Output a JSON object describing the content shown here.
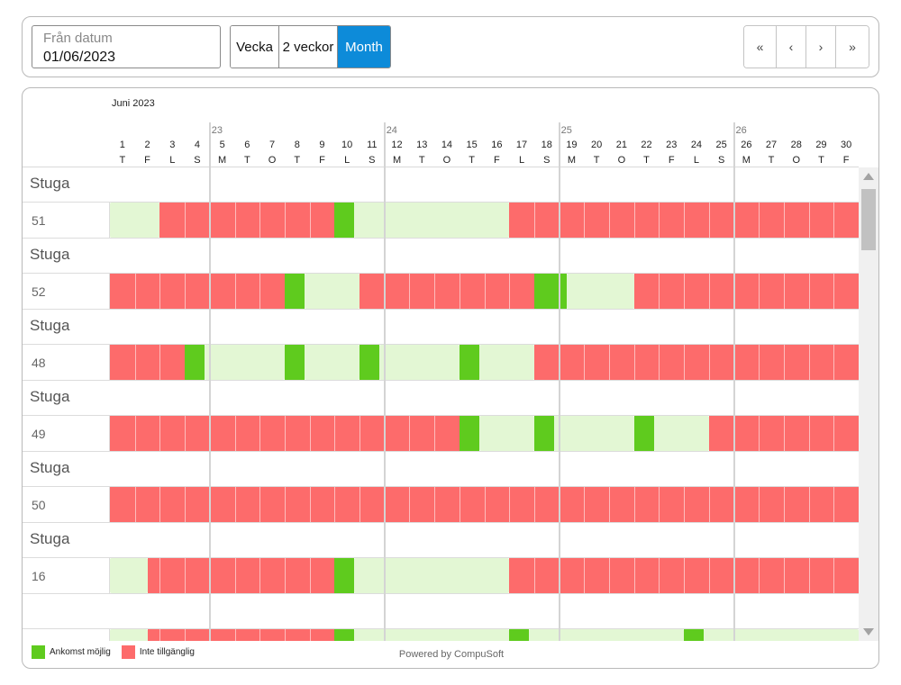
{
  "toolbar": {
    "date_label": "Från datum",
    "date_value": "01/06/2023",
    "views": [
      {
        "label": "Vecka",
        "active": false
      },
      {
        "label": "2 veckor",
        "active": false
      },
      {
        "label": "Month",
        "active": true
      }
    ],
    "nav": {
      "first": "«",
      "prev": "‹",
      "next": "›",
      "last": "»"
    },
    "accent_color": "#0d8bd9"
  },
  "calendar": {
    "month_label": "Juni 2023",
    "weeks": [
      {
        "label": "23",
        "start_day": 5
      },
      {
        "label": "24",
        "start_day": 12
      },
      {
        "label": "25",
        "start_day": 19
      },
      {
        "label": "26",
        "start_day": 26
      }
    ],
    "days": [
      {
        "n": "1",
        "d": "T"
      },
      {
        "n": "2",
        "d": "F"
      },
      {
        "n": "3",
        "d": "L"
      },
      {
        "n": "4",
        "d": "S"
      },
      {
        "n": "5",
        "d": "M"
      },
      {
        "n": "6",
        "d": "T"
      },
      {
        "n": "7",
        "d": "O"
      },
      {
        "n": "8",
        "d": "T"
      },
      {
        "n": "9",
        "d": "F"
      },
      {
        "n": "10",
        "d": "L"
      },
      {
        "n": "11",
        "d": "S"
      },
      {
        "n": "12",
        "d": "M"
      },
      {
        "n": "13",
        "d": "T"
      },
      {
        "n": "14",
        "d": "O"
      },
      {
        "n": "15",
        "d": "T"
      },
      {
        "n": "16",
        "d": "F"
      },
      {
        "n": "17",
        "d": "L"
      },
      {
        "n": "18",
        "d": "S"
      },
      {
        "n": "19",
        "d": "M"
      },
      {
        "n": "20",
        "d": "T"
      },
      {
        "n": "21",
        "d": "O"
      },
      {
        "n": "22",
        "d": "T"
      },
      {
        "n": "23",
        "d": "F"
      },
      {
        "n": "24",
        "d": "L"
      },
      {
        "n": "25",
        "d": "S"
      },
      {
        "n": "26",
        "d": "M"
      },
      {
        "n": "27",
        "d": "T"
      },
      {
        "n": "28",
        "d": "O"
      },
      {
        "n": "29",
        "d": "T"
      },
      {
        "n": "30",
        "d": "F"
      }
    ],
    "units": [
      {
        "group": "Stuga",
        "name": "51",
        "blocks": [
          {
            "type": "light",
            "from": 1,
            "to": 3
          },
          {
            "type": "red",
            "from": 3,
            "to": 10
          },
          {
            "type": "green",
            "from": 10,
            "to": 10.8
          },
          {
            "type": "light",
            "from": 10.8,
            "to": 17
          },
          {
            "type": "red",
            "from": 17,
            "to": 31
          }
        ]
      },
      {
        "group": "Stuga",
        "name": "52",
        "blocks": [
          {
            "type": "red",
            "from": 1,
            "to": 8
          },
          {
            "type": "green",
            "from": 8,
            "to": 8.8
          },
          {
            "type": "light",
            "from": 8.8,
            "to": 11
          },
          {
            "type": "red",
            "from": 11,
            "to": 18
          },
          {
            "type": "green",
            "from": 18,
            "to": 19.3
          },
          {
            "type": "light",
            "from": 19.3,
            "to": 22
          },
          {
            "type": "red",
            "from": 22,
            "to": 31
          }
        ]
      },
      {
        "group": "Stuga",
        "name": "48",
        "blocks": [
          {
            "type": "red",
            "from": 1,
            "to": 4
          },
          {
            "type": "green",
            "from": 4,
            "to": 4.8
          },
          {
            "type": "light",
            "from": 4.8,
            "to": 8
          },
          {
            "type": "green",
            "from": 8,
            "to": 8.8
          },
          {
            "type": "light",
            "from": 8.8,
            "to": 11
          },
          {
            "type": "green",
            "from": 11,
            "to": 11.8
          },
          {
            "type": "light",
            "from": 11.8,
            "to": 15
          },
          {
            "type": "green",
            "from": 15,
            "to": 15.8
          },
          {
            "type": "light",
            "from": 15.8,
            "to": 18
          },
          {
            "type": "red",
            "from": 18,
            "to": 31
          }
        ]
      },
      {
        "group": "Stuga",
        "name": "49",
        "blocks": [
          {
            "type": "red",
            "from": 1,
            "to": 15
          },
          {
            "type": "green",
            "from": 15,
            "to": 15.8
          },
          {
            "type": "light",
            "from": 15.8,
            "to": 18
          },
          {
            "type": "green",
            "from": 18,
            "to": 18.8
          },
          {
            "type": "light",
            "from": 18.8,
            "to": 22
          },
          {
            "type": "green",
            "from": 22,
            "to": 22.8
          },
          {
            "type": "light",
            "from": 22.8,
            "to": 25
          },
          {
            "type": "red",
            "from": 25,
            "to": 31
          }
        ]
      },
      {
        "group": "Stuga",
        "name": "50",
        "blocks": [
          {
            "type": "red",
            "from": 1,
            "to": 31
          }
        ]
      },
      {
        "group": "Stuga",
        "name": "16",
        "blocks": [
          {
            "type": "light",
            "from": 1,
            "to": 2.5
          },
          {
            "type": "red",
            "from": 2.5,
            "to": 10
          },
          {
            "type": "green",
            "from": 10,
            "to": 10.8
          },
          {
            "type": "light",
            "from": 10.8,
            "to": 17
          },
          {
            "type": "red",
            "from": 17,
            "to": 31
          }
        ]
      },
      {
        "group": "",
        "name": "",
        "blocks": [
          {
            "type": "light",
            "from": 1,
            "to": 2.5
          },
          {
            "type": "red",
            "from": 2.5,
            "to": 10
          },
          {
            "type": "green",
            "from": 10,
            "to": 10.8
          },
          {
            "type": "light",
            "from": 10.8,
            "to": 17
          },
          {
            "type": "green",
            "from": 17,
            "to": 17.8
          },
          {
            "type": "light",
            "from": 17.8,
            "to": 24
          },
          {
            "type": "green",
            "from": 24,
            "to": 24.8
          },
          {
            "type": "light",
            "from": 24.8,
            "to": 31
          }
        ]
      }
    ],
    "colors": {
      "unavailable": "#fd6b6b",
      "arrival": "#5fcb1e",
      "available": "#e3f7d4"
    }
  },
  "legend": [
    {
      "label": "Ankomst möjlig",
      "color": "#5fcb1e"
    },
    {
      "label": "Inte tillgänglig",
      "color": "#fd6b6b"
    }
  ],
  "footer": {
    "powered_by": "Powered by CompuSoft"
  }
}
